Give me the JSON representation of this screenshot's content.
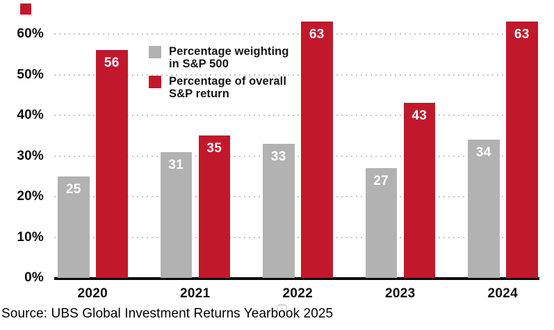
{
  "chart_data": {
    "type": "bar",
    "categories": [
      "2020",
      "2021",
      "2022",
      "2023",
      "2024"
    ],
    "series": [
      {
        "name": "Percentage weighting in S&P 500",
        "color": "#b2b2b2",
        "values": [
          25,
          31,
          33,
          27,
          34
        ]
      },
      {
        "name": "Percentage of overall S&P return",
        "color": "#c2182b",
        "values": [
          56,
          35,
          63,
          43,
          63
        ]
      }
    ],
    "title": "",
    "xlabel": "",
    "ylabel": "",
    "ytick_labels": [
      "0%",
      "10%",
      "20%",
      "30%",
      "40%",
      "50%",
      "60%"
    ],
    "ylim": [
      0,
      65
    ],
    "grid": "horizontal-dotted",
    "value_labels": "white, inside top of each bar",
    "legend_position": "inside-upper-area"
  },
  "legend": {
    "items": [
      {
        "label": "Percentage weighting\nin S&P 500",
        "color": "#b2b2b2"
      },
      {
        "label": "Percentage of overall\nS&P return",
        "color": "#c2182b"
      }
    ]
  },
  "decor": {
    "brand_mark_color": "#c2182b",
    "axis_color": "#050505"
  },
  "source": {
    "text": "Source: UBS Global Investment Returns Yearbook 2025"
  }
}
